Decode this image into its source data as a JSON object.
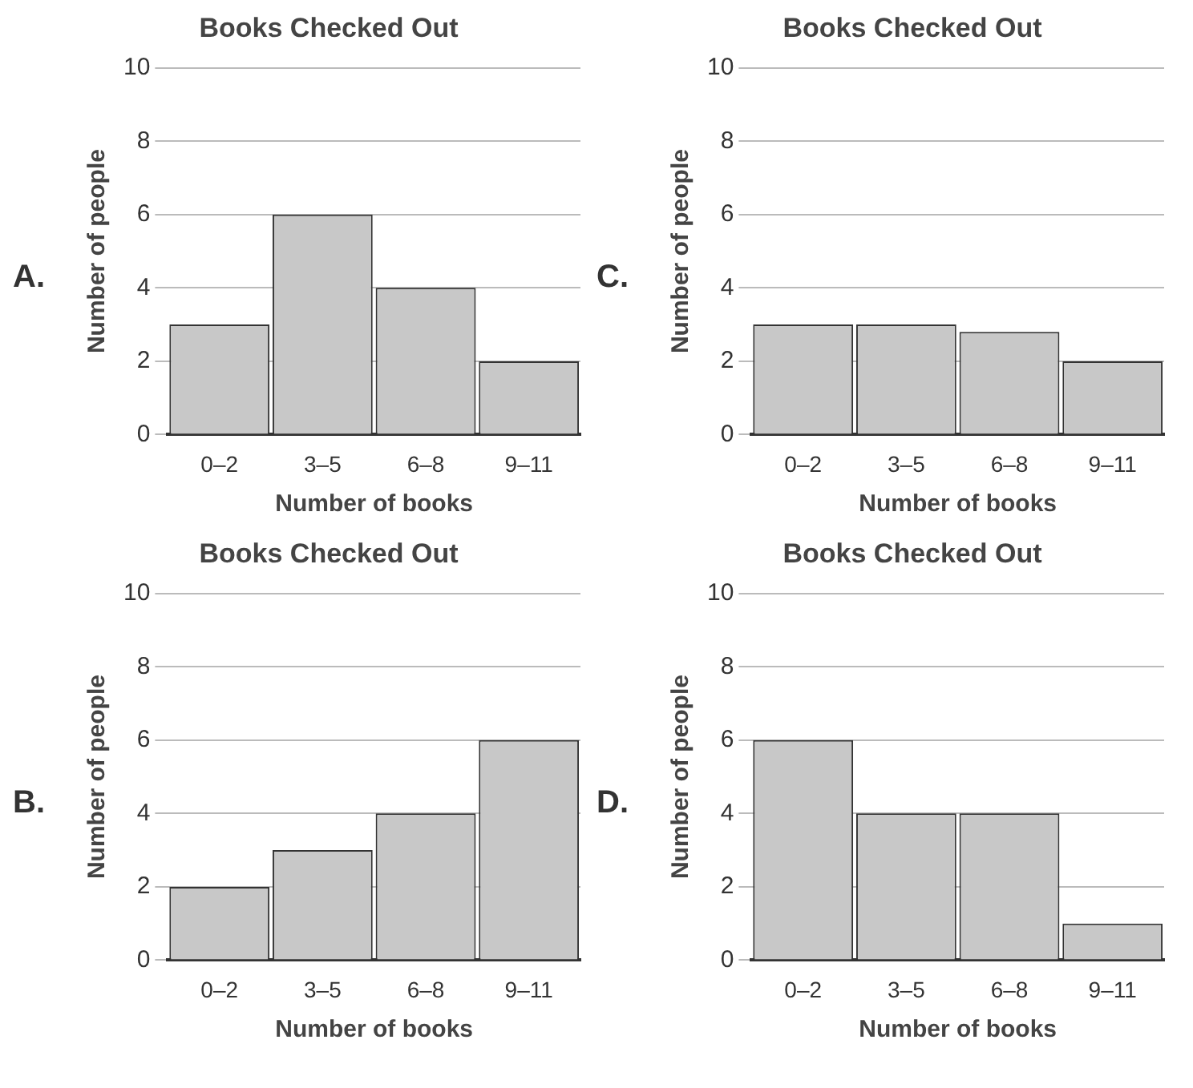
{
  "chart_data": [
    {
      "type": "bar",
      "title": "Books Checked Out",
      "xlabel": "Number of books",
      "ylabel": "Number of people",
      "categories": [
        "0–2",
        "3–5",
        "6–8",
        "9–11"
      ],
      "values": [
        3,
        6,
        4,
        2
      ],
      "color": "#c8c8c8",
      "ylim": [
        0,
        10
      ],
      "yticks": [
        0,
        2,
        4,
        6,
        8,
        10
      ],
      "grid": "y",
      "legend": false,
      "annotations": [
        "A."
      ]
    },
    {
      "type": "bar",
      "title": "Books Checked Out",
      "xlabel": "Number of books",
      "ylabel": "Number of people",
      "categories": [
        "0–2",
        "3–5",
        "6–8",
        "9–11"
      ],
      "values": [
        3,
        3,
        2.8,
        2
      ],
      "color": "#c8c8c8",
      "ylim": [
        0,
        10
      ],
      "yticks": [
        0,
        2,
        4,
        6,
        8,
        10
      ],
      "grid": "y",
      "legend": false,
      "annotations": [
        "C."
      ]
    },
    {
      "type": "bar",
      "title": "Books Checked Out",
      "xlabel": "Number of books",
      "ylabel": "Number of people",
      "categories": [
        "0–2",
        "3–5",
        "6–8",
        "9–11"
      ],
      "values": [
        2,
        3,
        4,
        6
      ],
      "color": "#c8c8c8",
      "ylim": [
        0,
        10
      ],
      "yticks": [
        0,
        2,
        4,
        6,
        8,
        10
      ],
      "grid": "y",
      "legend": false,
      "annotations": [
        "B."
      ]
    },
    {
      "type": "bar",
      "title": "Books Checked Out",
      "xlabel": "Number of books",
      "ylabel": "Number of people",
      "categories": [
        "0–2",
        "3–5",
        "6–8",
        "9–11"
      ],
      "values": [
        6,
        4,
        4,
        1
      ],
      "color": "#c8c8c8",
      "ylim": [
        0,
        10
      ],
      "yticks": [
        0,
        2,
        4,
        6,
        8,
        10
      ],
      "grid": "y",
      "legend": false,
      "annotations": [
        "D."
      ]
    }
  ]
}
